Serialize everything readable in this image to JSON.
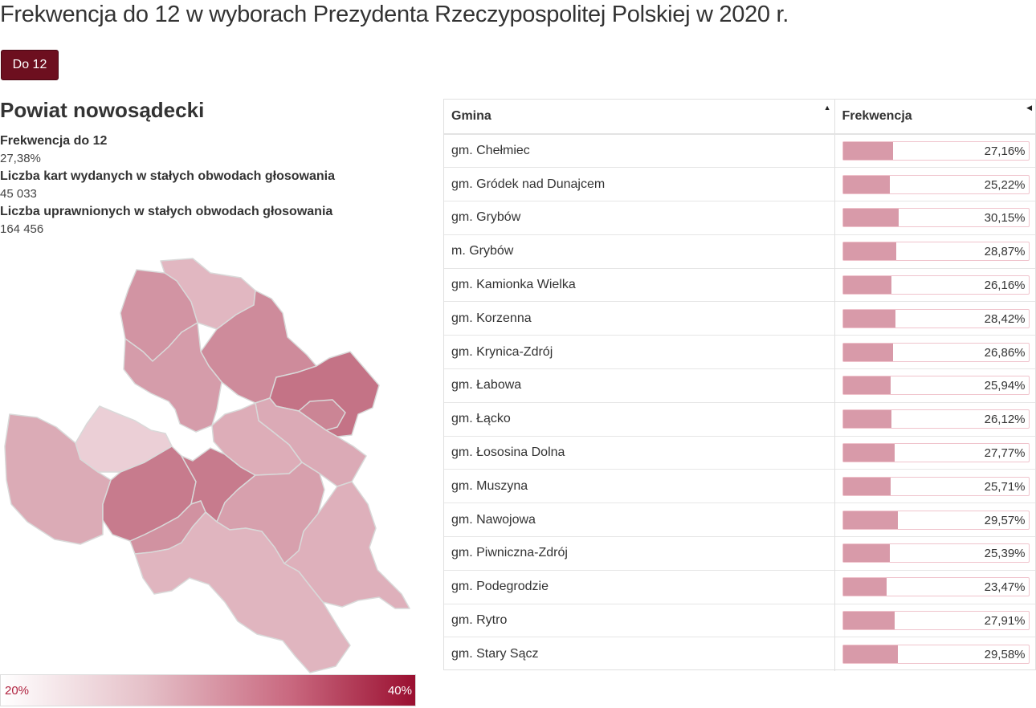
{
  "page": {
    "title": "Frekwencja do 12 w wyborach Prezydenta Rzeczypospolitej Polskiej w 2020 r."
  },
  "round_button": {
    "label": "Do 12"
  },
  "region": {
    "name": "Powiat nowosądecki",
    "stats": [
      {
        "label": "Frekwencja do 12",
        "value": "27,38%"
      },
      {
        "label": "Liczba kart wydanych w stałych obwodach głosowania",
        "value": "45 033"
      },
      {
        "label": "Liczba uprawnionych w stałych obwodach głosowania",
        "value": "164 456"
      }
    ]
  },
  "legend": {
    "min_label": "20%",
    "max_label": "40%",
    "min_value": 20,
    "max_value": 40
  },
  "table": {
    "headers": {
      "gmina": "Gmina",
      "frekwencja": "Frekwencja"
    },
    "rows": [
      {
        "gmina": "gm. Chełmiec",
        "value": 27.16,
        "label": "27,16%"
      },
      {
        "gmina": "gm. Gródek nad Dunajcem",
        "value": 25.22,
        "label": "25,22%"
      },
      {
        "gmina": "gm. Grybów",
        "value": 30.15,
        "label": "30,15%"
      },
      {
        "gmina": "m. Grybów",
        "value": 28.87,
        "label": "28,87%"
      },
      {
        "gmina": "gm. Kamionka Wielka",
        "value": 26.16,
        "label": "26,16%"
      },
      {
        "gmina": "gm. Korzenna",
        "value": 28.42,
        "label": "28,42%"
      },
      {
        "gmina": "gm. Krynica-Zdrój",
        "value": 26.86,
        "label": "26,86%"
      },
      {
        "gmina": "gm. Łabowa",
        "value": 25.94,
        "label": "25,94%"
      },
      {
        "gmina": "gm. Łącko",
        "value": 26.12,
        "label": "26,12%"
      },
      {
        "gmina": "gm. Łososina Dolna",
        "value": 27.77,
        "label": "27,77%"
      },
      {
        "gmina": "gm. Muszyna",
        "value": 25.71,
        "label": "25,71%"
      },
      {
        "gmina": "gm. Nawojowa",
        "value": 29.57,
        "label": "29,57%"
      },
      {
        "gmina": "gm. Piwniczna-Zdrój",
        "value": 25.39,
        "label": "25,39%"
      },
      {
        "gmina": "gm. Podegrodzie",
        "value": 23.47,
        "label": "23,47%"
      },
      {
        "gmina": "gm. Rytro",
        "value": 27.91,
        "label": "27,91%"
      },
      {
        "gmina": "gm. Stary Sącz",
        "value": 29.58,
        "label": "29,58%"
      }
    ]
  }
}
